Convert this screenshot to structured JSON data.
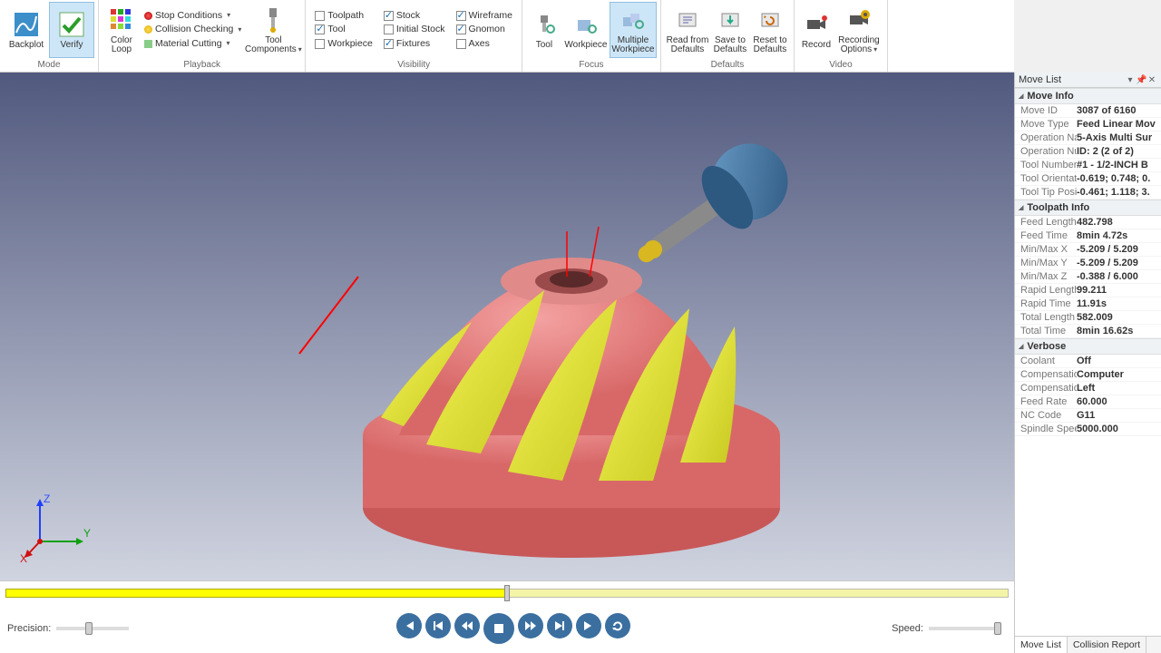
{
  "ribbon": {
    "mode": {
      "label": "Mode",
      "backplot": "Backplot",
      "verify": "Verify"
    },
    "playback": {
      "label": "Playback",
      "colorloop": "Color\nLoop",
      "stop_conditions": "Stop Conditions",
      "collision_checking": "Collision Checking",
      "material_cutting": "Material Cutting",
      "tool_components": "Tool\nComponents"
    },
    "visibility": {
      "label": "Visibility",
      "toolpath": "Toolpath",
      "tool": "Tool",
      "workpiece": "Workpiece",
      "stock": "Stock",
      "initial_stock": "Initial Stock",
      "fixtures": "Fixtures",
      "wireframe": "Wireframe",
      "gnomon": "Gnomon",
      "axes": "Axes"
    },
    "focus": {
      "label": "Focus",
      "tool": "Tool",
      "workpiece": "Workpiece",
      "multiple_workpiece": "Multiple\nWorkpiece"
    },
    "defaults": {
      "label": "Defaults",
      "read": "Read from\nDefaults",
      "save": "Save to\nDefaults",
      "reset": "Reset to\nDefaults"
    },
    "video": {
      "label": "Video",
      "record": "Record",
      "options": "Recording\nOptions"
    }
  },
  "viewport": {
    "bg_top": "#51597e",
    "bg_bottom": "#d0d4e0",
    "part_body_color": "#e87d7d",
    "part_machined_color": "#e8e83b",
    "tool_holder_color": "#3c6fa0",
    "tool_shaft_color": "#888888",
    "tool_tip_color": "#d8b720",
    "path_color": "#ff0000",
    "axes": {
      "x_label": "X",
      "y_label": "Y",
      "z_label": "Z"
    }
  },
  "timeline": {
    "progress_pct": 50,
    "precision_label": "Precision:",
    "speed_label": "Speed:",
    "precision_pos_pct": 45,
    "speed_pos_pct": 95
  },
  "panel": {
    "title": "Move List",
    "sections": {
      "move_info": {
        "title": "Move Info",
        "rows": [
          {
            "k": "Move ID",
            "v": "3087 of 6160"
          },
          {
            "k": "Move Type",
            "v": "Feed Linear Mov"
          },
          {
            "k": "Operation Na",
            "v": "5-Axis Multi Sur"
          },
          {
            "k": "Operation Nu",
            "v": "ID: 2 (2 of 2)"
          },
          {
            "k": "Tool Number",
            "v": "#1 - 1/2-INCH B"
          },
          {
            "k": "Tool Orientati",
            "v": "-0.619; 0.748; 0."
          },
          {
            "k": "Tool Tip Positi",
            "v": "-0.461; 1.118; 3."
          }
        ]
      },
      "toolpath_info": {
        "title": "Toolpath Info",
        "rows": [
          {
            "k": "Feed Length",
            "v": "482.798"
          },
          {
            "k": "Feed Time",
            "v": "8min 4.72s"
          },
          {
            "k": "Min/Max X",
            "v": "-5.209 / 5.209"
          },
          {
            "k": "Min/Max Y",
            "v": "-5.209 / 5.209"
          },
          {
            "k": "Min/Max Z",
            "v": "-0.388 / 6.000"
          },
          {
            "k": "Rapid Length",
            "v": "99.211"
          },
          {
            "k": "Rapid Time",
            "v": "11.91s"
          },
          {
            "k": "Total Length",
            "v": "582.009"
          },
          {
            "k": "Total Time",
            "v": "8min 16.62s"
          }
        ]
      },
      "verbose": {
        "title": "Verbose",
        "rows": [
          {
            "k": "Coolant",
            "v": "Off"
          },
          {
            "k": "Compensation",
            "v": "Computer"
          },
          {
            "k": "Compensation",
            "v": "Left"
          },
          {
            "k": "Feed Rate",
            "v": "60.000"
          },
          {
            "k": "NC Code",
            "v": "G11"
          },
          {
            "k": "Spindle Spee",
            "v": "5000.000"
          }
        ]
      }
    },
    "tabs": {
      "move_list": "Move List",
      "collision_report": "Collision Report"
    }
  }
}
